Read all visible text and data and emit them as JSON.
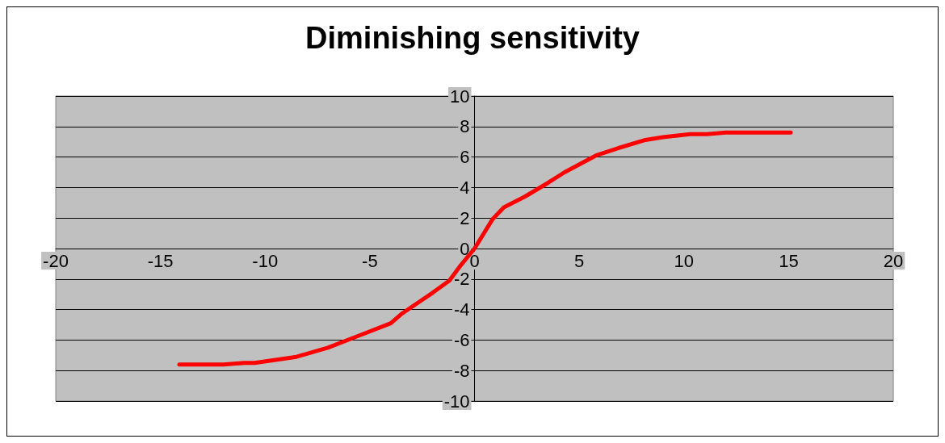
{
  "chart_data": {
    "type": "line",
    "title": "Diminishing sensitivity",
    "grid": "y",
    "marker": "none",
    "line_style": "solid",
    "xlim": [
      -20,
      20
    ],
    "xticks": [
      -20,
      -15,
      -10,
      -5,
      0,
      5,
      10,
      15,
      20
    ],
    "ylim": [
      -10,
      10
    ],
    "yticks": [
      -10,
      -8,
      -6,
      -4,
      -2,
      0,
      2,
      4,
      6,
      8,
      10
    ],
    "series": [
      {
        "color": "#ff0000",
        "x": [
          -14.1,
          -12,
          -11,
          -10.5,
          -8.5,
          -7,
          -5.5,
          -4,
          -3.5,
          -2.75,
          -2,
          -1.2,
          -0.66,
          0,
          0.85,
          1.4,
          2.4,
          3.5,
          4.3,
          5.8,
          6.9,
          8.1,
          9,
          10.3,
          11.1,
          12,
          15.1
        ],
        "values": [
          -7.6,
          -7.6,
          -7.5,
          -7.5,
          -7.1,
          -6.5,
          -5.7,
          -4.9,
          -4.3,
          -3.6,
          -2.9,
          -2.1,
          -1.1,
          0,
          1.9,
          2.7,
          3.4,
          4.3,
          5,
          6.1,
          6.6,
          7.1,
          7.3,
          7.5,
          7.5,
          7.6,
          7.6
        ]
      }
    ]
  }
}
